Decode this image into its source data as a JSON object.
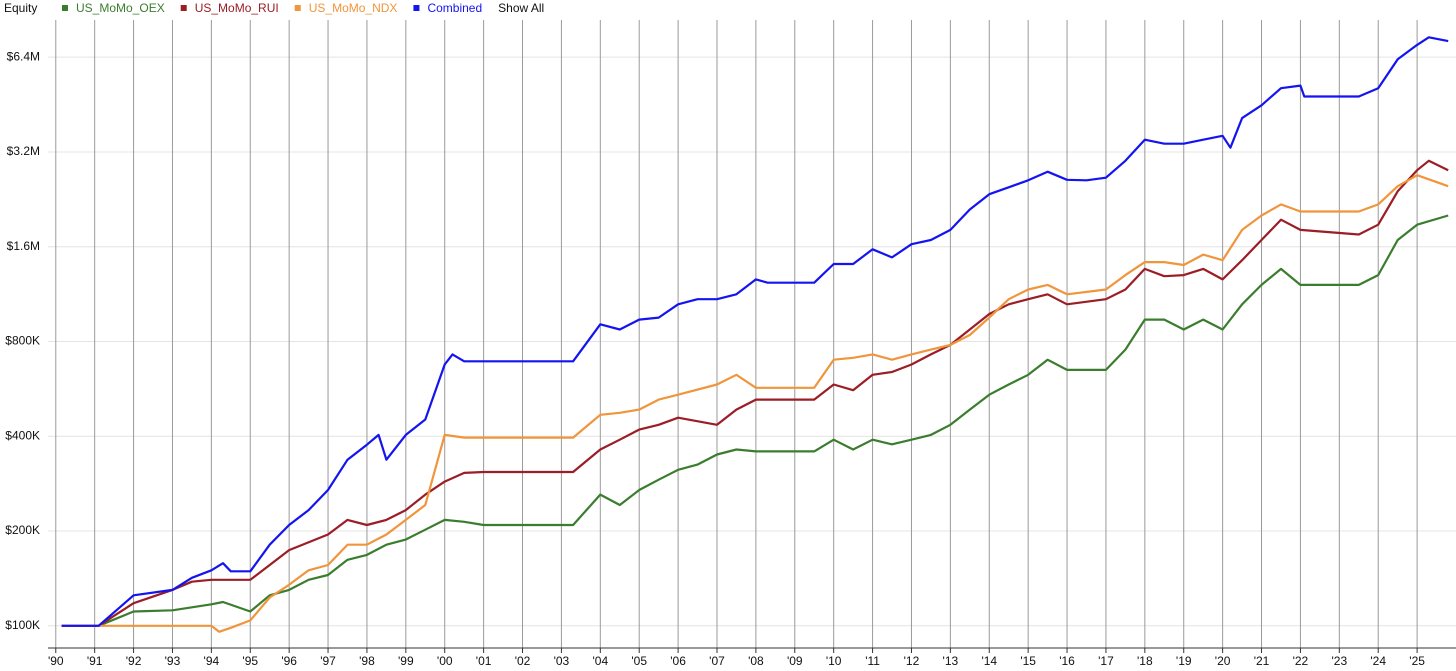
{
  "chart_data": {
    "type": "line",
    "title": "Equity",
    "log_scale": true,
    "grid": true,
    "legend": "top",
    "xlim": [
      1989.8,
      2026
    ],
    "ylim": [
      85000,
      8400000
    ],
    "xticks": [
      {
        "value": 1990,
        "label": "'90"
      },
      {
        "value": 1991,
        "label": "'91"
      },
      {
        "value": 1992,
        "label": "'92"
      },
      {
        "value": 1993,
        "label": "'93"
      },
      {
        "value": 1994,
        "label": "'94"
      },
      {
        "value": 1995,
        "label": "'95"
      },
      {
        "value": 1996,
        "label": "'96"
      },
      {
        "value": 1997,
        "label": "'97"
      },
      {
        "value": 1998,
        "label": "'98"
      },
      {
        "value": 1999,
        "label": "'99"
      },
      {
        "value": 2000,
        "label": "'00"
      },
      {
        "value": 2001,
        "label": "'01"
      },
      {
        "value": 2002,
        "label": "'02"
      },
      {
        "value": 2003,
        "label": "'03"
      },
      {
        "value": 2004,
        "label": "'04"
      },
      {
        "value": 2005,
        "label": "'05"
      },
      {
        "value": 2006,
        "label": "'06"
      },
      {
        "value": 2007,
        "label": "'07"
      },
      {
        "value": 2008,
        "label": "'08"
      },
      {
        "value": 2009,
        "label": "'09"
      },
      {
        "value": 2010,
        "label": "'10"
      },
      {
        "value": 2011,
        "label": "'11"
      },
      {
        "value": 2012,
        "label": "'12"
      },
      {
        "value": 2013,
        "label": "'13"
      },
      {
        "value": 2014,
        "label": "'14"
      },
      {
        "value": 2015,
        "label": "'15"
      },
      {
        "value": 2016,
        "label": "'16"
      },
      {
        "value": 2017,
        "label": "'17"
      },
      {
        "value": 2018,
        "label": "'18"
      },
      {
        "value": 2019,
        "label": "'19"
      },
      {
        "value": 2020,
        "label": "'20"
      },
      {
        "value": 2021,
        "label": "'21"
      },
      {
        "value": 2022,
        "label": "'22"
      },
      {
        "value": 2023,
        "label": "'23"
      },
      {
        "value": 2024,
        "label": "'24"
      },
      {
        "value": 2025,
        "label": "'25"
      }
    ],
    "yticks": [
      {
        "value": 100000,
        "label": "$100K"
      },
      {
        "value": 200000,
        "label": "$200K"
      },
      {
        "value": 400000,
        "label": "$400K"
      },
      {
        "value": 800000,
        "label": "$800K"
      },
      {
        "value": 1600000,
        "label": "$1.6M"
      },
      {
        "value": 3200000,
        "label": "$3.2M"
      },
      {
        "value": 6400000,
        "label": "$6.4M"
      }
    ],
    "series": [
      {
        "name": "US_MoMo_OEX",
        "color": "#3b7d2e",
        "x": [
          1990.15,
          1991.1,
          1992,
          1993,
          1994,
          1994.3,
          1995,
          1995.5,
          1996,
          1996.5,
          1997,
          1997.5,
          1998,
          1998.5,
          1999,
          1999.5,
          2000,
          2000.5,
          2001,
          2003.3,
          2004,
          2004.5,
          2005,
          2005.5,
          2006,
          2006.5,
          2007,
          2007.5,
          2008,
          2009.5,
          2010,
          2010.5,
          2011,
          2011.5,
          2012,
          2012.5,
          2013,
          2013.5,
          2014,
          2014.5,
          2015,
          2015.5,
          2016,
          2017,
          2017.5,
          2018,
          2018.5,
          2019,
          2019.5,
          2020,
          2020.5,
          2021,
          2021.5,
          2022,
          2023.5,
          2024,
          2024.5,
          2025,
          2025.8
        ],
        "values": [
          100000,
          100000,
          111000,
          112000,
          117000,
          119000,
          111000,
          125000,
          130000,
          140000,
          145000,
          162000,
          168000,
          181000,
          188000,
          202000,
          217000,
          214000,
          209000,
          209000,
          261000,
          242000,
          270000,
          291000,
          313000,
          325000,
          350000,
          363000,
          358000,
          358000,
          390000,
          363000,
          390000,
          377000,
          390000,
          404000,
          435000,
          486000,
          542000,
          584000,
          627000,
          700000,
          650000,
          650000,
          754000,
          939000,
          939000,
          873000,
          939000,
          873000,
          1050000,
          1210000,
          1360000,
          1210000,
          1210000,
          1300000,
          1680000,
          1880000,
          2010000
        ]
      },
      {
        "name": "US_MoMo_RUI",
        "color": "#9b1d25",
        "x": [
          1990.15,
          1991.1,
          1992,
          1993,
          1993.5,
          1994,
          1995,
          1995.5,
          1996,
          1997,
          1997.5,
          1998,
          1998.5,
          1999,
          1999.5,
          2000,
          2000.5,
          2001,
          2003.3,
          2004,
          2004.5,
          2005,
          2005.5,
          2006,
          2007,
          2007.5,
          2008,
          2009.5,
          2010,
          2010.5,
          2011,
          2011.5,
          2012,
          2012.5,
          2013,
          2013.5,
          2014,
          2014.5,
          2015,
          2015.5,
          2016,
          2017,
          2017.5,
          2018,
          2018.5,
          2019,
          2019.5,
          2020,
          2020.5,
          2021,
          2021.5,
          2022,
          2023.5,
          2024,
          2024.5,
          2025,
          2025.3,
          2025.8
        ],
        "values": [
          100000,
          100000,
          118000,
          130000,
          138000,
          140000,
          140000,
          156000,
          174000,
          195000,
          217000,
          209000,
          217000,
          233000,
          261000,
          287000,
          306000,
          308000,
          308000,
          363000,
          390000,
          420000,
          435000,
          458000,
          435000,
          486000,
          523000,
          523000,
          584000,
          560000,
          627000,
          640000,
          676000,
          728000,
          780000,
          873000,
          978000,
          1050000,
          1090000,
          1130000,
          1050000,
          1090000,
          1170000,
          1360000,
          1290000,
          1300000,
          1360000,
          1260000,
          1450000,
          1680000,
          1950000,
          1810000,
          1750000,
          1880000,
          2400000,
          2800000,
          3000000,
          2800000
        ]
      },
      {
        "name": "US_MoMo_NDX",
        "color": "#f0953b",
        "x": [
          1990.15,
          1991.1,
          1994,
          1994.2,
          1994.5,
          1995,
          1995.5,
          1996,
          1996.5,
          1997,
          1997.5,
          1998,
          1998.5,
          1999,
          1999.5,
          2000,
          2000.5,
          2001,
          2003.3,
          2004,
          2004.5,
          2005,
          2005.5,
          2006,
          2007,
          2007.5,
          2008,
          2009.5,
          2010,
          2010.5,
          2011,
          2011.5,
          2012,
          2012.5,
          2013,
          2013.5,
          2014,
          2014.5,
          2015,
          2015.5,
          2016,
          2017,
          2017.5,
          2018,
          2018.5,
          2019,
          2019.5,
          2020,
          2020.5,
          2021,
          2021.5,
          2022,
          2023.5,
          2024,
          2024.5,
          2025,
          2025.8
        ],
        "values": [
          100000,
          100000,
          100000,
          95700,
          98500,
          104000,
          123000,
          135000,
          150000,
          156000,
          181000,
          181000,
          195000,
          217000,
          242000,
          404000,
          396000,
          396000,
          396000,
          468000,
          475000,
          486000,
          523000,
          542000,
          584000,
          627000,
          570000,
          570000,
          700000,
          710000,
          728000,
          700000,
          728000,
          754000,
          780000,
          839000,
          953000,
          1090000,
          1170000,
          1210000,
          1130000,
          1170000,
          1300000,
          1430000,
          1430000,
          1400000,
          1510000,
          1450000,
          1810000,
          2010000,
          2180000,
          2070000,
          2070000,
          2180000,
          2490000,
          2700000,
          2490000
        ]
      },
      {
        "name": "Combined",
        "color": "#1414f0",
        "x": [
          1990.15,
          1991.1,
          1992,
          1993,
          1993.5,
          1994,
          1994.3,
          1994.5,
          1995,
          1995.5,
          1996,
          1996.5,
          1997,
          1997.5,
          1998,
          1998.3,
          1998.5,
          1999,
          1999.5,
          2000,
          2000.2,
          2000.5,
          2001,
          2003.3,
          2004,
          2004.5,
          2005,
          2005.5,
          2006,
          2006.5,
          2007,
          2007.5,
          2008,
          2008.3,
          2009.5,
          2010,
          2010.5,
          2011,
          2011.5,
          2012,
          2012.5,
          2013,
          2013.5,
          2014,
          2014.5,
          2015,
          2015.5,
          2016,
          2016.5,
          2017,
          2017.5,
          2018,
          2018.5,
          2019,
          2019.5,
          2020,
          2020.2,
          2020.5,
          2021,
          2021.5,
          2022,
          2022.1,
          2023.5,
          2024,
          2024.5,
          2025,
          2025.3,
          2025.8
        ],
        "values": [
          100000,
          100000,
          125000,
          130000,
          142000,
          150000,
          158000,
          149000,
          149000,
          181000,
          209000,
          233000,
          270000,
          337000,
          376000,
          404000,
          337000,
          404000,
          452000,
          676000,
          728000,
          692000,
          692000,
          692000,
          907000,
          873000,
          939000,
          953000,
          1050000,
          1090000,
          1090000,
          1130000,
          1260000,
          1230000,
          1230000,
          1410000,
          1410000,
          1570000,
          1480000,
          1630000,
          1680000,
          1810000,
          2100000,
          2350000,
          2470000,
          2600000,
          2770000,
          2610000,
          2600000,
          2650000,
          3000000,
          3500000,
          3400000,
          3400000,
          3500000,
          3600000,
          3300000,
          4100000,
          4500000,
          5100000,
          5200000,
          4800000,
          4800000,
          5100000,
          6300000,
          7000000,
          7400000,
          7200000
        ]
      }
    ]
  },
  "controls": {
    "show_all": "Show All"
  }
}
